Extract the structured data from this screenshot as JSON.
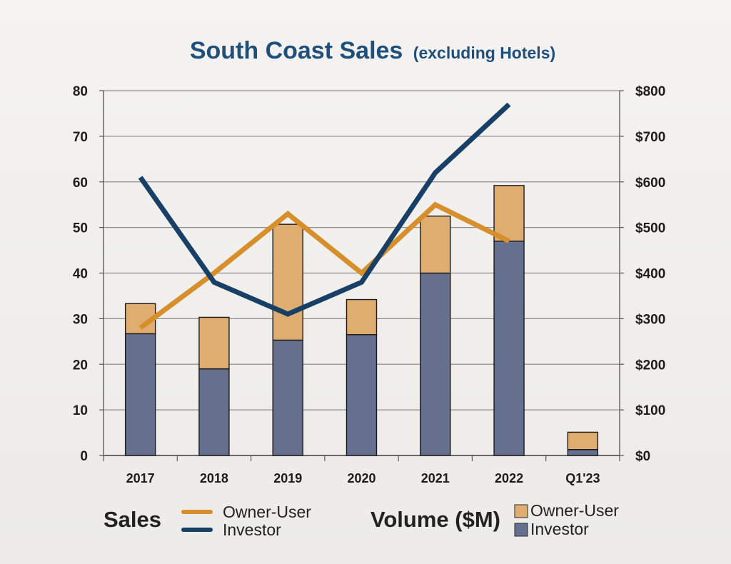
{
  "chart_data": {
    "type": "bar",
    "title": "South Coast Sales",
    "subtitle": "(excluding Hotels)",
    "categories": [
      "2017",
      "2018",
      "2019",
      "2020",
      "2021",
      "2022",
      "Q1'23"
    ],
    "left_axis": {
      "ylim": [
        0,
        80
      ],
      "ticks": [
        0,
        10,
        20,
        30,
        40,
        50,
        60,
        70,
        80
      ],
      "tick_labels": [
        "0",
        "10",
        "20",
        "30",
        "40",
        "50",
        "60",
        "70",
        "80"
      ]
    },
    "right_axis": {
      "ylim": [
        0,
        800
      ],
      "ticks": [
        0,
        100,
        200,
        300,
        400,
        500,
        600,
        700,
        800
      ],
      "tick_labels": [
        "$0",
        "$100",
        "$200",
        "$300",
        "$400",
        "$500",
        "$600",
        "$700",
        "$800"
      ]
    },
    "bar_series": [
      {
        "name": "Investor",
        "color": "#65708f",
        "values": [
          267,
          190,
          253,
          265,
          400,
          470,
          13
        ]
      },
      {
        "name": "Owner-User",
        "color": "#e0ad71",
        "values": [
          66,
          113,
          254,
          77,
          125,
          122,
          38
        ]
      }
    ],
    "line_series": [
      {
        "name": "Owner-User",
        "color": "#d78f2b",
        "values": [
          28,
          40,
          53,
          40,
          55,
          47,
          null
        ]
      },
      {
        "name": "Investor",
        "color": "#183f66",
        "values": [
          61,
          38,
          31,
          38,
          62,
          77,
          null
        ]
      }
    ],
    "grid": true,
    "legend": {
      "position": "bottom",
      "sales_label": "Sales",
      "volume_label": "Volume ($M)",
      "sales_items": [
        "Owner-User",
        "Investor"
      ],
      "volume_items": [
        "Owner-User",
        "Investor"
      ]
    }
  }
}
